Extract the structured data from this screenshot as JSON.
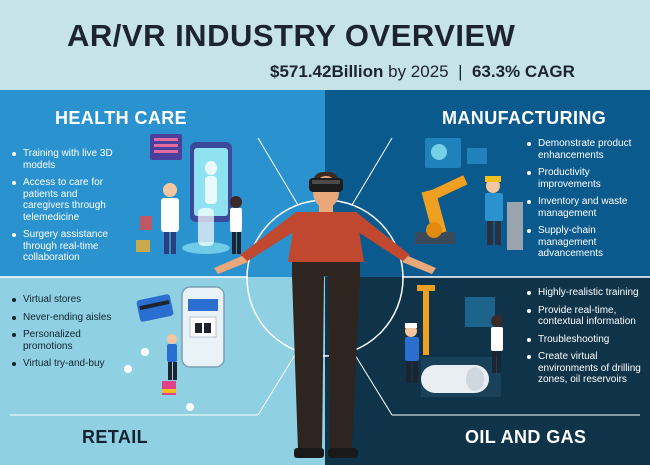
{
  "header": {
    "title": "AR/VR INDUSTRY OVERVIEW",
    "value": "$571.42Billion",
    "by_year": " by 2025",
    "divider": "|",
    "cagr": "63.3% CAGR"
  },
  "health_care": {
    "title": "HEALTH CARE",
    "items": [
      "Training with live 3D models",
      "Access to care for patients and caregivers through telemedicine",
      "Surgery assistance through real-time collaboration"
    ]
  },
  "manufacturing": {
    "title": "MANUFACTURING",
    "items": [
      "Demonstrate product enhancements",
      "Productivity improvements",
      "Inventory and waste management",
      "Supply-chain management advancements"
    ]
  },
  "retail": {
    "title": "RETAIL",
    "items": [
      "Virtual stores",
      "Never-ending aisles",
      "Personalized promotions",
      "Virtual try-and-buy"
    ]
  },
  "oil_gas": {
    "title": "OIL AND GAS",
    "items": [
      "Highly-realistic training",
      "Provide real-time, contextual information",
      "Troubleshooting",
      "Create virtual environments of drilling zones, oil reservoirs"
    ]
  },
  "colors": {
    "health_care_bg": "#2a93cf",
    "manufacturing_bg": "#0b5a8e",
    "retail_bg": "#8fd0e3",
    "oil_gas_bg": "#0f3449",
    "header_bg": "#c7e3ea"
  }
}
